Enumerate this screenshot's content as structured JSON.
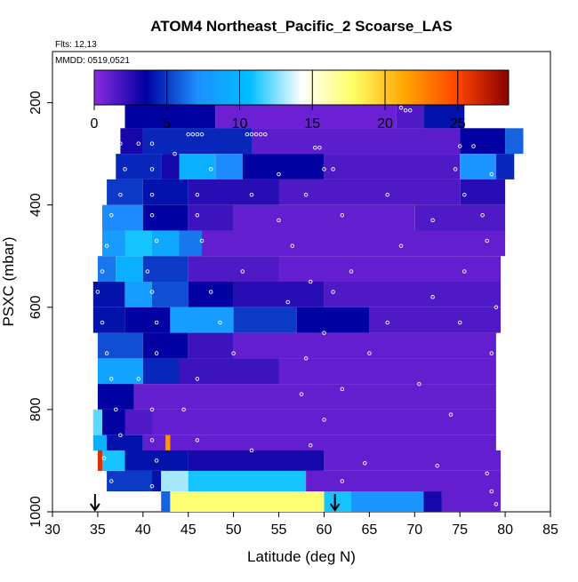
{
  "chart_data": {
    "type": "heatmap",
    "title": "ATOM4 Northeast_Pacific_2 Scoarse_LAS",
    "flights_label": "Flts: 12,13",
    "mmdd_label": "MMDD: 0519,0521",
    "xlabel": "Latitude (deg N)",
    "ylabel": "PSXC (mbar)",
    "xlim": [
      30,
      85
    ],
    "ylim": [
      1000,
      100
    ],
    "y_inverted": true,
    "x_ticks": [
      30,
      35,
      40,
      45,
      50,
      55,
      60,
      65,
      70,
      75,
      80,
      85
    ],
    "y_ticks": [
      200,
      400,
      600,
      800,
      1000
    ],
    "grid": false,
    "colorbar": {
      "range": [
        0,
        28.5
      ],
      "ticks": [
        0,
        5,
        10,
        15,
        20,
        25
      ],
      "colors": [
        "#8a2be2",
        "#0000a0",
        "#1e90ff",
        "#00bfff",
        "#ffffff",
        "#ffff66",
        "#ffa500",
        "#ff4500",
        "#8b0000"
      ]
    },
    "arrows_latitude": [
      34.7,
      61.2
    ],
    "bands": [
      {
        "p": [
          180,
          200
        ],
        "segments": [
          [
            38.5,
            68.5,
            0.7
          ]
        ]
      },
      {
        "p": [
          200,
          250
        ],
        "segments": [
          [
            38.0,
            48.0,
            3.5
          ],
          [
            48.0,
            68.0,
            0.8
          ],
          [
            68.0,
            71.0,
            1.5
          ],
          [
            71.0,
            75.5,
            4.0
          ]
        ]
      },
      {
        "p": [
          250,
          300
        ],
        "segments": [
          [
            37.5,
            40.0,
            3.0
          ],
          [
            40.0,
            52.0,
            4.5
          ],
          [
            52.0,
            75.0,
            1.2
          ],
          [
            75.0,
            80.0,
            3.5
          ],
          [
            80.0,
            82.0,
            6.0
          ]
        ]
      },
      {
        "p": [
          300,
          350
        ],
        "segments": [
          [
            37.0,
            42.0,
            4.5
          ],
          [
            42.0,
            44.0,
            3.0
          ],
          [
            44.0,
            48.0,
            9.5
          ],
          [
            48.0,
            51.0,
            7.0
          ],
          [
            51.0,
            60.0,
            3.5
          ],
          [
            60.0,
            75.0,
            1.5
          ],
          [
            75.0,
            79.0,
            7.5
          ],
          [
            79.0,
            81.0,
            4.5
          ]
        ]
      },
      {
        "p": [
          350,
          400
        ],
        "segments": [
          [
            36.0,
            40.0,
            5.0
          ],
          [
            40.0,
            45.0,
            4.0
          ],
          [
            45.0,
            55.0,
            2.5
          ],
          [
            55.0,
            75.0,
            1.5
          ],
          [
            75.0,
            80.0,
            2.5
          ]
        ]
      },
      {
        "p": [
          400,
          450
        ],
        "segments": [
          [
            35.5,
            40.0,
            7.0
          ],
          [
            40.0,
            45.0,
            3.5
          ],
          [
            45.0,
            50.0,
            2.0
          ],
          [
            50.0,
            70.0,
            1.0
          ],
          [
            70.0,
            80.0,
            1.5
          ]
        ]
      },
      {
        "p": [
          450,
          500
        ],
        "segments": [
          [
            35.5,
            38.0,
            8.0
          ],
          [
            38.0,
            41.0,
            11.0
          ],
          [
            41.0,
            44.0,
            9.0
          ],
          [
            44.0,
            46.5,
            6.5
          ],
          [
            46.5,
            80.0,
            1.0
          ]
        ]
      },
      {
        "p": [
          500,
          550
        ],
        "segments": [
          [
            35.0,
            37.0,
            6.5
          ],
          [
            37.0,
            40.0,
            9.5
          ],
          [
            40.0,
            45.0,
            5.0
          ],
          [
            45.0,
            55.0,
            1.5
          ],
          [
            55.0,
            79.5,
            1.0
          ]
        ]
      },
      {
        "p": [
          550,
          600
        ],
        "segments": [
          [
            34.5,
            38.0,
            4.0
          ],
          [
            38.0,
            41.0,
            8.0
          ],
          [
            41.0,
            45.0,
            5.5
          ],
          [
            45.0,
            50.0,
            3.5
          ],
          [
            50.0,
            60.0,
            2.5
          ],
          [
            60.0,
            79.5,
            1.5
          ]
        ]
      },
      {
        "p": [
          600,
          650
        ],
        "segments": [
          [
            34.5,
            38.0,
            4.0
          ],
          [
            38.0,
            43.0,
            3.5
          ],
          [
            43.0,
            50.0,
            8.0
          ],
          [
            50.0,
            57.0,
            5.0
          ],
          [
            57.0,
            65.0,
            3.5
          ],
          [
            65.0,
            79.5,
            1.5
          ]
        ]
      },
      {
        "p": [
          650,
          700
        ],
        "segments": [
          [
            35.0,
            40.0,
            5.5
          ],
          [
            40.0,
            45.0,
            3.5
          ],
          [
            45.0,
            50.0,
            2.0
          ],
          [
            50.0,
            79.0,
            1.0
          ]
        ]
      },
      {
        "p": [
          700,
          750
        ],
        "segments": [
          [
            35.0,
            40.0,
            8.5
          ],
          [
            40.0,
            44.0,
            4.5
          ],
          [
            44.0,
            55.0,
            2.0
          ],
          [
            55.0,
            79.0,
            1.0
          ]
        ]
      },
      {
        "p": [
          750,
          800
        ],
        "segments": [
          [
            35.0,
            39.0,
            3.5
          ],
          [
            39.0,
            79.0,
            1.0
          ]
        ]
      },
      {
        "p": [
          800,
          850
        ],
        "segments": [
          [
            34.5,
            35.5,
            12.0
          ],
          [
            35.5,
            38.0,
            3.5
          ],
          [
            38.0,
            41.0,
            1.5
          ],
          [
            41.0,
            79.0,
            1.0
          ]
        ]
      },
      {
        "p": [
          850,
          880
        ],
        "segments": [
          [
            34.5,
            36.0,
            9.5
          ],
          [
            36.0,
            40.0,
            4.0
          ],
          [
            40.0,
            42.5,
            1.0
          ],
          [
            42.5,
            43.0,
            22.0
          ],
          [
            43.0,
            79.0,
            1.0
          ]
        ]
      },
      {
        "p": [
          880,
          920
        ],
        "segments": [
          [
            35.0,
            35.5,
            26.0
          ],
          [
            35.5,
            38.0,
            11.0
          ],
          [
            38.0,
            45.0,
            4.0
          ],
          [
            45.0,
            60.0,
            3.0
          ],
          [
            60.0,
            79.5,
            1.0
          ]
        ]
      },
      {
        "p": [
          920,
          960
        ],
        "segments": [
          [
            36.0,
            41.0,
            5.0
          ],
          [
            41.0,
            42.0,
            4.0
          ],
          [
            42.0,
            45.0,
            13.0
          ],
          [
            45.0,
            58.0,
            11.0
          ],
          [
            58.0,
            79.5,
            1.0
          ]
        ]
      },
      {
        "p": [
          960,
          1005
        ],
        "segments": [
          [
            42.0,
            43.0,
            6.0
          ],
          [
            43.0,
            60.0,
            17.5
          ],
          [
            60.0,
            63.0,
            11.0
          ],
          [
            63.0,
            71.0,
            7.5
          ],
          [
            71.0,
            73.0,
            3.0
          ],
          [
            73.0,
            79.5,
            1.0
          ]
        ]
      }
    ],
    "observation_points": [
      [
        38.8,
        195
      ],
      [
        39.0,
        195
      ],
      [
        39.5,
        195
      ],
      [
        40.0,
        195
      ],
      [
        61.0,
        195
      ],
      [
        61.5,
        195
      ],
      [
        62.0,
        195
      ],
      [
        62.5,
        195
      ],
      [
        63.0,
        195
      ],
      [
        63.5,
        195
      ],
      [
        64.0,
        195
      ],
      [
        64.5,
        195
      ],
      [
        65.0,
        195
      ],
      [
        65.5,
        195
      ],
      [
        66.0,
        195
      ],
      [
        66.5,
        195
      ],
      [
        68.5,
        210
      ],
      [
        69.0,
        215
      ],
      [
        69.5,
        215
      ],
      [
        45.0,
        262
      ],
      [
        45.5,
        262
      ],
      [
        46.0,
        262
      ],
      [
        46.5,
        262
      ],
      [
        51.5,
        262
      ],
      [
        52.0,
        262
      ],
      [
        52.5,
        262
      ],
      [
        53.0,
        262
      ],
      [
        53.5,
        262
      ],
      [
        59.0,
        288
      ],
      [
        59.5,
        288
      ],
      [
        37.5,
        280
      ],
      [
        39.5,
        280
      ],
      [
        41.0,
        280
      ],
      [
        43.5,
        300
      ],
      [
        75.0,
        285
      ],
      [
        76.5,
        285
      ],
      [
        38.0,
        330
      ],
      [
        41.0,
        330
      ],
      [
        47.5,
        330
      ],
      [
        55.0,
        340
      ],
      [
        60.0,
        330
      ],
      [
        61.0,
        330
      ],
      [
        74.5,
        330
      ],
      [
        78.5,
        340
      ],
      [
        37.5,
        380
      ],
      [
        41.0,
        380
      ],
      [
        46.0,
        380
      ],
      [
        52.0,
        380
      ],
      [
        58.0,
        380
      ],
      [
        67.0,
        380
      ],
      [
        75.5,
        380
      ],
      [
        36.5,
        420
      ],
      [
        41.0,
        420
      ],
      [
        46.0,
        420
      ],
      [
        55.0,
        430
      ],
      [
        62.0,
        420
      ],
      [
        72.0,
        430
      ],
      [
        77.5,
        420
      ],
      [
        36.0,
        480
      ],
      [
        41.5,
        470
      ],
      [
        46.5,
        470
      ],
      [
        56.5,
        480
      ],
      [
        68.5,
        480
      ],
      [
        78.0,
        470
      ],
      [
        35.5,
        530
      ],
      [
        40.5,
        530
      ],
      [
        51.0,
        530
      ],
      [
        58.5,
        550
      ],
      [
        63.0,
        530
      ],
      [
        75.5,
        530
      ],
      [
        35.0,
        570
      ],
      [
        41.0,
        570
      ],
      [
        47.5,
        570
      ],
      [
        56.0,
        590
      ],
      [
        61.0,
        570
      ],
      [
        72.0,
        580
      ],
      [
        79.0,
        600
      ],
      [
        35.5,
        630
      ],
      [
        41.5,
        630
      ],
      [
        48.5,
        630
      ],
      [
        60.0,
        650
      ],
      [
        67.0,
        630
      ],
      [
        75.0,
        630
      ],
      [
        36.0,
        690
      ],
      [
        41.5,
        690
      ],
      [
        50.0,
        690
      ],
      [
        58.0,
        700
      ],
      [
        65.0,
        690
      ],
      [
        78.5,
        690
      ],
      [
        36.5,
        740
      ],
      [
        39.5,
        740
      ],
      [
        46.0,
        740
      ],
      [
        57.5,
        770
      ],
      [
        62.0,
        760
      ],
      [
        70.5,
        750
      ],
      [
        37.0,
        800
      ],
      [
        41.0,
        800
      ],
      [
        44.5,
        800
      ],
      [
        60.0,
        820
      ],
      [
        74.0,
        810
      ],
      [
        37.5,
        850
      ],
      [
        41.0,
        860
      ],
      [
        46.0,
        860
      ],
      [
        52.0,
        880
      ],
      [
        58.5,
        870
      ],
      [
        35.7,
        895
      ],
      [
        41.5,
        900
      ],
      [
        64.5,
        905
      ],
      [
        72.5,
        910
      ],
      [
        78.0,
        925
      ],
      [
        36.5,
        940
      ],
      [
        41.0,
        950
      ],
      [
        62.0,
        940
      ],
      [
        78.5,
        960
      ],
      [
        79.0,
        985
      ]
    ]
  }
}
